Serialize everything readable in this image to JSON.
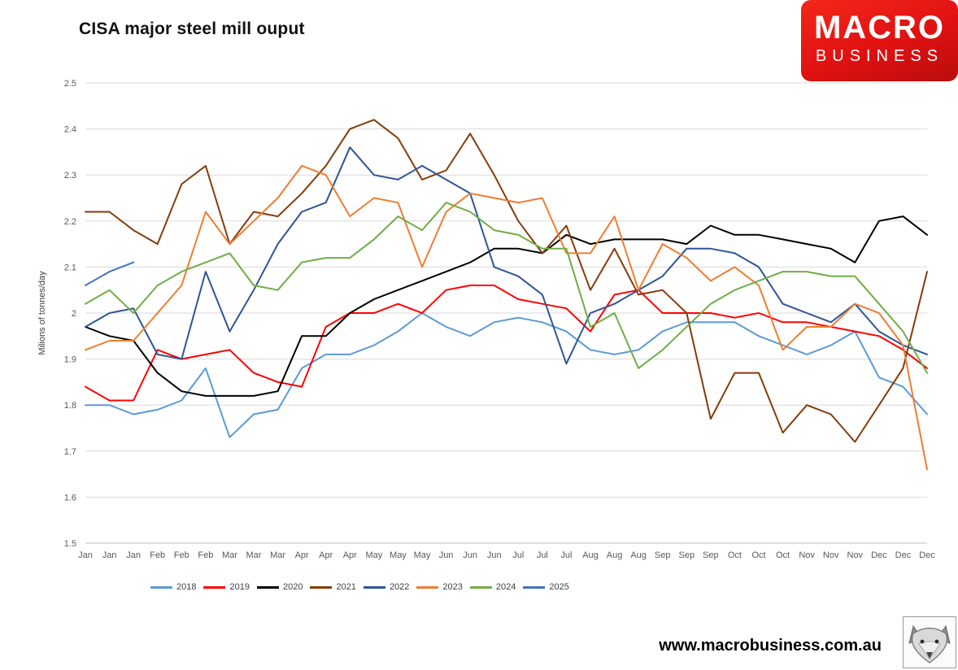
{
  "logo": {
    "line1": "MACRO",
    "line2": "BUSINESS",
    "bg_color": "#E01111",
    "text_color": "#FFFFFF"
  },
  "footer": {
    "url": "www.macrobusiness.com.au"
  },
  "chart_data": {
    "type": "line",
    "title": "CISA major steel mill ouput",
    "xlabel": "",
    "ylabel": "Milions of tonnes/day",
    "ylim": [
      1.5,
      2.5
    ],
    "y_ticks": [
      "1.5",
      "1.6",
      "1.7",
      "1.8",
      "1.9",
      "2",
      "2.1",
      "2.2",
      "2.3",
      "2.4",
      "2.5"
    ],
    "grid": "horizontal",
    "gridline_color": "#D9D9D9",
    "axisline_color": "#BFBFBF",
    "legend_position": "bottom",
    "x_labels": [
      "Jan",
      "Jan",
      "Jan",
      "Feb",
      "Feb",
      "Feb",
      "Mar",
      "Mar",
      "Mar",
      "Apr",
      "Apr",
      "Apr",
      "May",
      "May",
      "May",
      "Jun",
      "Jun",
      "Jun",
      "Jul",
      "Jul",
      "Jul",
      "Aug",
      "Aug",
      "Aug",
      "Sep",
      "Sep",
      "Sep",
      "Oct",
      "Oct",
      "Oct",
      "Nov",
      "Nov",
      "Nov",
      "Dec",
      "Dec",
      "Dec"
    ],
    "series": [
      {
        "name": "2018",
        "color": "#5B9BD5",
        "values": [
          1.8,
          1.8,
          1.78,
          1.79,
          1.81,
          1.88,
          1.73,
          1.78,
          1.79,
          1.88,
          1.91,
          1.91,
          1.93,
          1.96,
          2.0,
          1.97,
          1.95,
          1.98,
          1.99,
          1.98,
          1.96,
          1.92,
          1.91,
          1.92,
          1.96,
          1.98,
          1.98,
          1.98,
          1.95,
          1.93,
          1.91,
          1.93,
          1.96,
          1.86,
          1.84,
          1.78
        ]
      },
      {
        "name": "2019",
        "color": "#FF0000",
        "values": [
          1.84,
          1.81,
          1.81,
          1.92,
          1.9,
          1.91,
          1.92,
          1.87,
          1.85,
          1.84,
          1.97,
          2.0,
          2.0,
          2.02,
          2.0,
          2.05,
          2.06,
          2.06,
          2.03,
          2.02,
          2.01,
          1.96,
          2.04,
          2.05,
          2.0,
          2.0,
          2.0,
          1.99,
          2.0,
          1.98,
          1.98,
          1.97,
          1.96,
          1.95,
          1.92,
          1.88
        ]
      },
      {
        "name": "2020",
        "color": "#000000",
        "values": [
          1.97,
          1.95,
          1.94,
          1.87,
          1.83,
          1.82,
          1.82,
          1.82,
          1.83,
          1.95,
          1.95,
          2.0,
          2.03,
          2.05,
          2.07,
          2.09,
          2.11,
          2.14,
          2.14,
          2.13,
          2.17,
          2.15,
          2.16,
          2.16,
          2.16,
          2.15,
          2.19,
          2.17,
          2.17,
          2.16,
          2.15,
          2.14,
          2.11,
          2.2,
          2.21,
          2.17
        ]
      },
      {
        "name": "2021",
        "color": "#843C0C",
        "values": [
          2.22,
          2.22,
          2.18,
          2.15,
          2.28,
          2.32,
          2.15,
          2.22,
          2.21,
          2.26,
          2.32,
          2.4,
          2.42,
          2.38,
          2.29,
          2.31,
          2.39,
          2.3,
          2.2,
          2.13,
          2.19,
          2.05,
          2.14,
          2.04,
          2.05,
          2.0,
          1.77,
          1.87,
          1.87,
          1.74,
          1.8,
          1.78,
          1.72,
          1.8,
          1.88,
          2.09
        ]
      },
      {
        "name": "2022",
        "color": "#2F5597",
        "values": [
          1.97,
          2.0,
          2.01,
          1.91,
          1.9,
          2.09,
          1.96,
          2.05,
          2.15,
          2.22,
          2.24,
          2.36,
          2.3,
          2.29,
          2.32,
          2.29,
          2.26,
          2.1,
          2.08,
          2.04,
          1.89,
          2.0,
          2.02,
          2.05,
          2.08,
          2.14,
          2.14,
          2.13,
          2.1,
          2.02,
          2.0,
          1.98,
          2.02,
          1.96,
          1.93,
          1.91
        ]
      },
      {
        "name": "2023",
        "color": "#ED7D31",
        "values": [
          1.92,
          1.94,
          1.94,
          2.0,
          2.06,
          2.22,
          2.15,
          2.2,
          2.25,
          2.32,
          2.3,
          2.21,
          2.25,
          2.24,
          2.1,
          2.22,
          2.26,
          2.25,
          2.24,
          2.25,
          2.13,
          2.13,
          2.21,
          2.05,
          2.15,
          2.12,
          2.07,
          2.1,
          2.06,
          1.92,
          1.97,
          1.97,
          2.02,
          2.0,
          1.93,
          1.66
        ]
      },
      {
        "name": "2024",
        "color": "#70AD47",
        "values": [
          2.02,
          2.05,
          2.0,
          2.06,
          2.09,
          2.11,
          2.13,
          2.06,
          2.05,
          2.11,
          2.12,
          2.12,
          2.16,
          2.21,
          2.18,
          2.24,
          2.22,
          2.18,
          2.17,
          2.14,
          2.14,
          1.97,
          2.0,
          1.88,
          1.92,
          1.97,
          2.02,
          2.05,
          2.07,
          2.09,
          2.09,
          2.08,
          2.08,
          2.02,
          1.96,
          1.87
        ]
      },
      {
        "name": "2025",
        "color": "#4472C4",
        "values": [
          2.06,
          2.09,
          2.11
        ]
      }
    ]
  }
}
